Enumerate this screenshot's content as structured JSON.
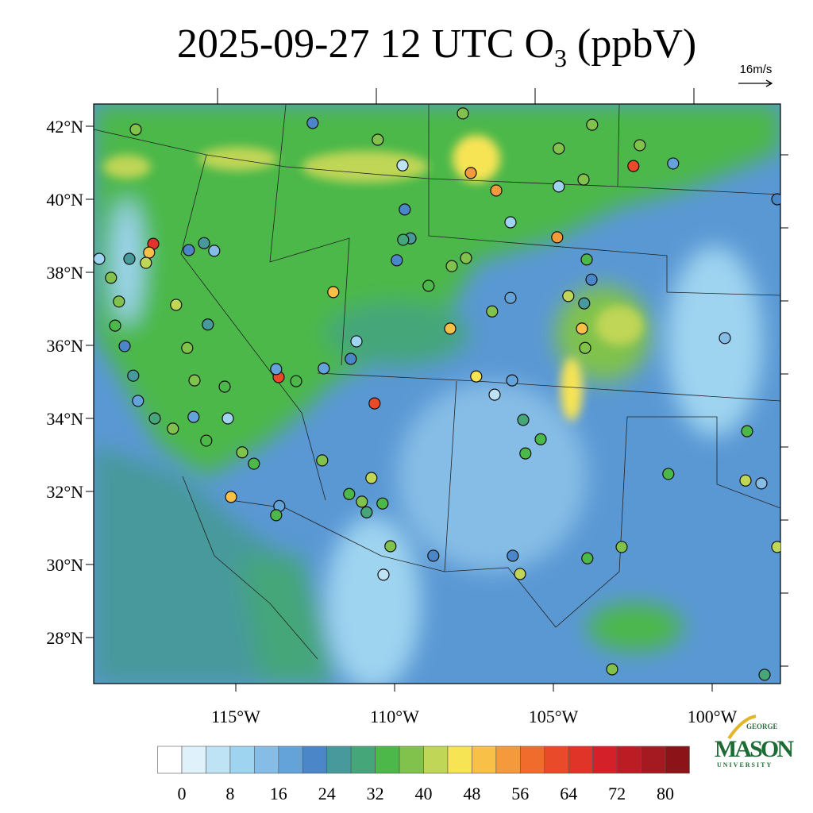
{
  "map": {
    "title": {
      "main": "2025-09-27 12 UTC O",
      "subscript": "3",
      "units": " (ppbV)"
    },
    "vector_key": "16m/s",
    "lat_ticks": [
      {
        "value": 42,
        "label": "42°N"
      },
      {
        "value": 40,
        "label": "40°N"
      },
      {
        "value": 38,
        "label": "38°N"
      },
      {
        "value": 36,
        "label": "36°N"
      },
      {
        "value": 34,
        "label": "34°N"
      },
      {
        "value": 32,
        "label": "32°N"
      },
      {
        "value": 30,
        "label": "30°N"
      },
      {
        "value": 28,
        "label": "28°N"
      }
    ],
    "lon_ticks": [
      {
        "value": -115,
        "label": "115°W"
      },
      {
        "value": -110,
        "label": "110°W"
      },
      {
        "value": -105,
        "label": "105°W"
      },
      {
        "value": -100,
        "label": "100°W"
      }
    ],
    "colorbar": {
      "ticks": [
        0,
        8,
        16,
        24,
        32,
        40,
        48,
        56,
        64,
        72,
        80
      ],
      "colors": [
        "#ffffff",
        "#dff1fa",
        "#bde3f5",
        "#9fd4f0",
        "#86bde6",
        "#64a3da",
        "#4a86c8",
        "#47999b",
        "#45a67a",
        "#4cb84a",
        "#80c24c",
        "#c0d656",
        "#f7e455",
        "#f9c048",
        "#f49a3c",
        "#f06c2c",
        "#e84a2a",
        "#e03428",
        "#d42028",
        "#bc1c24",
        "#a41a20",
        "#8c1418"
      ]
    },
    "logo": {
      "top": "GEORGE",
      "name": "MASON",
      "bottom": "UNIVERSITY"
    },
    "stations": [
      {
        "lon": -118.15,
        "lat": 41.91,
        "value": 36
      },
      {
        "lon": -112.58,
        "lat": 42.09,
        "value": 20
      },
      {
        "lon": -110.53,
        "lat": 41.63,
        "value": 36
      },
      {
        "lon": -109.75,
        "lat": 40.93,
        "value": 4
      },
      {
        "lon": -107.85,
        "lat": 42.35,
        "value": 36
      },
      {
        "lon": -107.6,
        "lat": 40.72,
        "value": 52
      },
      {
        "lon": -106.8,
        "lat": 40.24,
        "value": 52
      },
      {
        "lon": -106.35,
        "lat": 39.37,
        "value": 8
      },
      {
        "lon": -104.83,
        "lat": 41.39,
        "value": 36
      },
      {
        "lon": -103.78,
        "lat": 42.04,
        "value": 36
      },
      {
        "lon": -102.48,
        "lat": 40.91,
        "value": 60
      },
      {
        "lon": -102.28,
        "lat": 41.48,
        "value": 36
      },
      {
        "lon": -101.23,
        "lat": 40.98,
        "value": 16
      },
      {
        "lon": -97.95,
        "lat": 40.0,
        "value": 20
      },
      {
        "lon": -104.88,
        "lat": 38.96,
        "value": 52
      },
      {
        "lon": -104.05,
        "lat": 40.54,
        "value": 36
      },
      {
        "lon": -104.83,
        "lat": 40.35,
        "value": 8
      },
      {
        "lon": -117.6,
        "lat": 38.78,
        "value": 64
      },
      {
        "lon": -117.73,
        "lat": 38.54,
        "value": 48
      },
      {
        "lon": -117.83,
        "lat": 38.26,
        "value": 40
      },
      {
        "lon": -118.35,
        "lat": 38.37,
        "value": 24
      },
      {
        "lon": -119.3,
        "lat": 38.37,
        "value": 8
      },
      {
        "lon": -118.93,
        "lat": 37.85,
        "value": 36
      },
      {
        "lon": -118.68,
        "lat": 37.2,
        "value": 36
      },
      {
        "lon": -118.8,
        "lat": 36.54,
        "value": 32
      },
      {
        "lon": -118.5,
        "lat": 35.98,
        "value": 20
      },
      {
        "lon": -116.88,
        "lat": 37.11,
        "value": 40
      },
      {
        "lon": -116.53,
        "lat": 35.93,
        "value": 36
      },
      {
        "lon": -115.88,
        "lat": 36.57,
        "value": 24
      },
      {
        "lon": -116.48,
        "lat": 38.61,
        "value": 20
      },
      {
        "lon": -115.68,
        "lat": 38.59,
        "value": 12
      },
      {
        "lon": -116.0,
        "lat": 38.8,
        "value": 24
      },
      {
        "lon": -111.93,
        "lat": 37.46,
        "value": 48
      },
      {
        "lon": -113.65,
        "lat": 35.13,
        "value": 60
      },
      {
        "lon": -113.73,
        "lat": 35.35,
        "value": 16
      },
      {
        "lon": -113.1,
        "lat": 35.02,
        "value": 32
      },
      {
        "lon": -112.23,
        "lat": 35.37,
        "value": 16
      },
      {
        "lon": -111.38,
        "lat": 35.63,
        "value": 20
      },
      {
        "lon": -111.2,
        "lat": 36.11,
        "value": 8
      },
      {
        "lon": -110.63,
        "lat": 34.41,
        "value": 60
      },
      {
        "lon": -112.28,
        "lat": 32.85,
        "value": 36
      },
      {
        "lon": -111.43,
        "lat": 31.93,
        "value": 32
      },
      {
        "lon": -110.73,
        "lat": 32.37,
        "value": 40
      },
      {
        "lon": -110.38,
        "lat": 31.67,
        "value": 32
      },
      {
        "lon": -110.13,
        "lat": 30.5,
        "value": 36
      },
      {
        "lon": -110.35,
        "lat": 29.72,
        "value": 4
      },
      {
        "lon": -108.78,
        "lat": 30.24,
        "value": 20
      },
      {
        "lon": -108.25,
        "lat": 36.46,
        "value": 48
      },
      {
        "lon": -108.2,
        "lat": 38.17,
        "value": 36
      },
      {
        "lon": -107.75,
        "lat": 38.39,
        "value": 36
      },
      {
        "lon": -108.93,
        "lat": 37.63,
        "value": 32
      },
      {
        "lon": -106.93,
        "lat": 36.93,
        "value": 36
      },
      {
        "lon": -106.35,
        "lat": 37.3,
        "value": 16
      },
      {
        "lon": -107.43,
        "lat": 35.15,
        "value": 44
      },
      {
        "lon": -106.85,
        "lat": 34.65,
        "value": 4
      },
      {
        "lon": -106.3,
        "lat": 35.04,
        "value": 16
      },
      {
        "lon": -105.95,
        "lat": 33.96,
        "value": 28
      },
      {
        "lon": -105.88,
        "lat": 33.04,
        "value": 32
      },
      {
        "lon": -105.4,
        "lat": 33.43,
        "value": 32
      },
      {
        "lon": -103.95,
        "lat": 38.35,
        "value": 32
      },
      {
        "lon": -104.53,
        "lat": 37.35,
        "value": 40
      },
      {
        "lon": -104.1,
        "lat": 36.46,
        "value": 48
      },
      {
        "lon": -104.0,
        "lat": 35.93,
        "value": 36
      },
      {
        "lon": -103.8,
        "lat": 37.8,
        "value": 20
      },
      {
        "lon": -104.03,
        "lat": 37.15,
        "value": 24
      },
      {
        "lon": -99.6,
        "lat": 36.2,
        "value": 12
      },
      {
        "lon": -98.9,
        "lat": 33.65,
        "value": 32
      },
      {
        "lon": -98.45,
        "lat": 32.22,
        "value": 12
      },
      {
        "lon": -98.95,
        "lat": 32.3,
        "value": 40
      },
      {
        "lon": -101.38,
        "lat": 32.48,
        "value": 32
      },
      {
        "lon": -102.85,
        "lat": 30.48,
        "value": 36
      },
      {
        "lon": -103.93,
        "lat": 30.17,
        "value": 32
      },
      {
        "lon": -106.05,
        "lat": 29.74,
        "value": 40
      },
      {
        "lon": -106.28,
        "lat": 30.24,
        "value": 20
      },
      {
        "lon": -97.95,
        "lat": 30.48,
        "value": 40
      },
      {
        "lon": -103.15,
        "lat": 27.13,
        "value": 36
      },
      {
        "lon": -98.35,
        "lat": 26.98,
        "value": 28
      },
      {
        "lon": -115.15,
        "lat": 31.85,
        "value": 48
      },
      {
        "lon": -116.3,
        "lat": 35.04,
        "value": 36
      },
      {
        "lon": -115.25,
        "lat": 34.0,
        "value": 8
      },
      {
        "lon": -113.63,
        "lat": 31.6,
        "value": 16
      },
      {
        "lon": -113.73,
        "lat": 31.35,
        "value": 32
      },
      {
        "lon": -114.43,
        "lat": 32.76,
        "value": 32
      },
      {
        "lon": -114.8,
        "lat": 33.07,
        "value": 36
      },
      {
        "lon": -116.33,
        "lat": 34.04,
        "value": 16
      },
      {
        "lon": -115.93,
        "lat": 33.39,
        "value": 32
      },
      {
        "lon": -116.98,
        "lat": 33.72,
        "value": 36
      },
      {
        "lon": -117.55,
        "lat": 34.0,
        "value": 28
      },
      {
        "lon": -118.08,
        "lat": 34.48,
        "value": 16
      },
      {
        "lon": -118.23,
        "lat": 35.17,
        "value": 24
      },
      {
        "lon": -115.35,
        "lat": 34.87,
        "value": 32
      },
      {
        "lon": -109.68,
        "lat": 39.72,
        "value": 20
      },
      {
        "lon": -109.5,
        "lat": 38.93,
        "value": 24
      },
      {
        "lon": -109.93,
        "lat": 38.33,
        "value": 20
      },
      {
        "lon": -109.73,
        "lat": 38.89,
        "value": 28
      },
      {
        "lon": -111.03,
        "lat": 31.72,
        "value": 36
      },
      {
        "lon": -110.88,
        "lat": 31.43,
        "value": 28
      }
    ]
  }
}
